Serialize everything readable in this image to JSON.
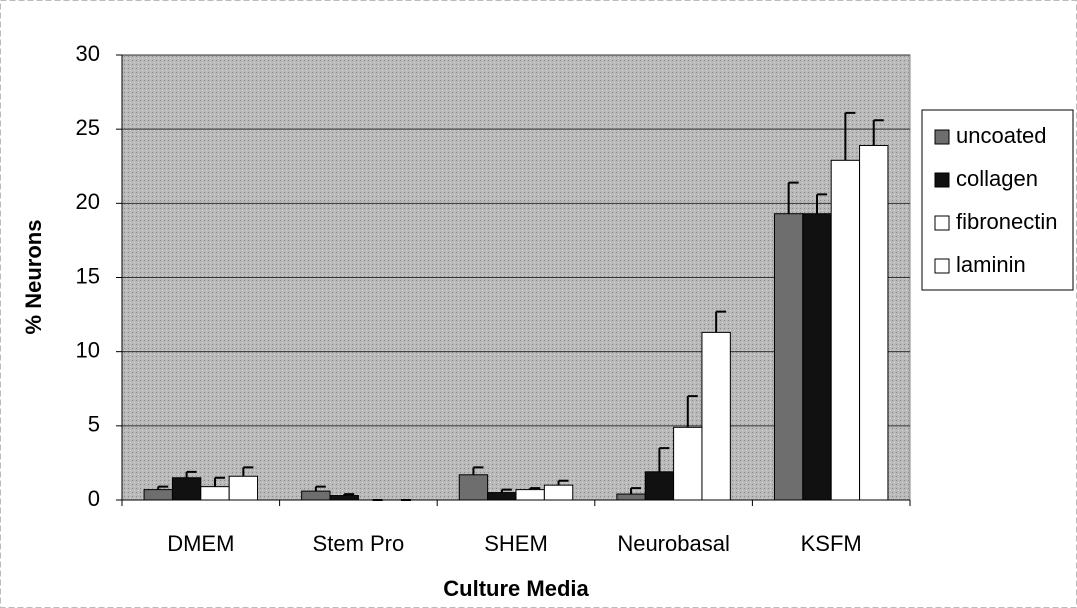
{
  "chart_data": {
    "type": "bar",
    "x_label": "Culture Media",
    "y_label": "% Neurons",
    "categories": [
      "DMEM",
      "Stem Pro",
      "SHEM",
      "Neurobasal",
      "KSFM"
    ],
    "series": [
      {
        "name": "uncoated",
        "color": "#6e6e6e",
        "values": [
          0.7,
          0.6,
          1.7,
          0.4,
          19.3
        ],
        "errors": [
          0.2,
          0.3,
          0.5,
          0.4,
          2.1
        ]
      },
      {
        "name": "collagen",
        "color": "#111111",
        "values": [
          1.5,
          0.3,
          0.5,
          1.9,
          19.3
        ],
        "errors": [
          0.4,
          0.1,
          0.2,
          1.6,
          1.3
        ]
      },
      {
        "name": "fibronectin",
        "color": "#ffffff",
        "values": [
          0.9,
          0,
          0.7,
          4.9,
          22.9
        ],
        "errors": [
          0.6,
          0,
          0.1,
          2.1,
          3.2
        ]
      },
      {
        "name": "laminin",
        "color": "#ffffff",
        "values": [
          1.6,
          0,
          1.0,
          11.3,
          23.9
        ],
        "errors": [
          0.6,
          0,
          0.3,
          1.4,
          1.7
        ]
      }
    ],
    "ylim": [
      0,
      30
    ],
    "yticks": [
      0,
      5,
      10,
      15,
      20,
      25,
      30
    ],
    "grid": true,
    "legend": "right"
  }
}
